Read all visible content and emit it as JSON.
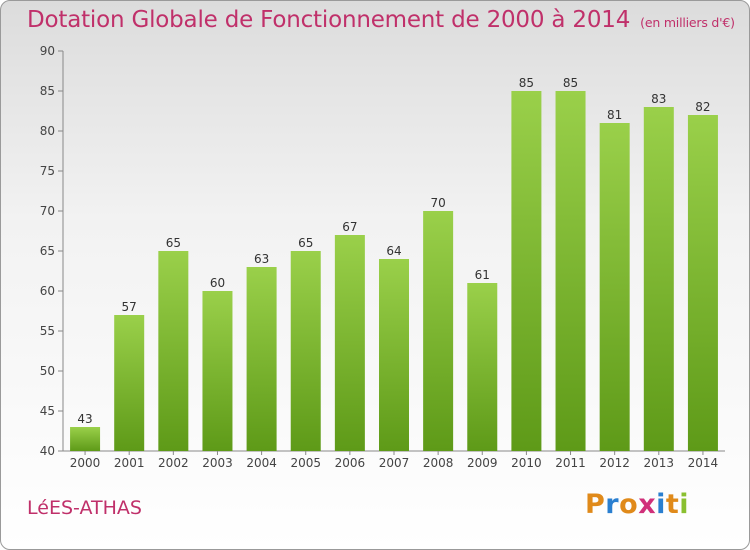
{
  "chart_data": {
    "type": "bar",
    "title": "Dotation Globale de Fonctionnement de 2000 à 2014",
    "unit_label": "(en milliers d'€)",
    "categories": [
      "2000",
      "2001",
      "2002",
      "2003",
      "2004",
      "2005",
      "2006",
      "2007",
      "2008",
      "2009",
      "2010",
      "2011",
      "2012",
      "2013",
      "2014"
    ],
    "values": [
      43,
      57,
      65,
      60,
      63,
      65,
      67,
      64,
      70,
      61,
      85,
      85,
      81,
      83,
      82
    ],
    "ylim": [
      40,
      90
    ],
    "yticks": [
      40,
      45,
      50,
      55,
      60,
      65,
      70,
      75,
      80,
      85,
      90
    ],
    "xlabel": "",
    "ylabel": "",
    "grid": false,
    "colors": {
      "bar_top": "#9ad04a",
      "bar_bottom": "#5e9a18",
      "title": "#c0306a"
    }
  },
  "footer": {
    "commune": "LéES-ATHAS",
    "logo_letters": [
      "P",
      "r",
      "o",
      "x",
      "i",
      "t",
      "i"
    ],
    "logo_colors": [
      "#e08a1a",
      "#2a7fd0",
      "#e08a1a",
      "#d0307a",
      "#2a7fd0",
      "#e08a1a",
      "#8ac030"
    ]
  }
}
